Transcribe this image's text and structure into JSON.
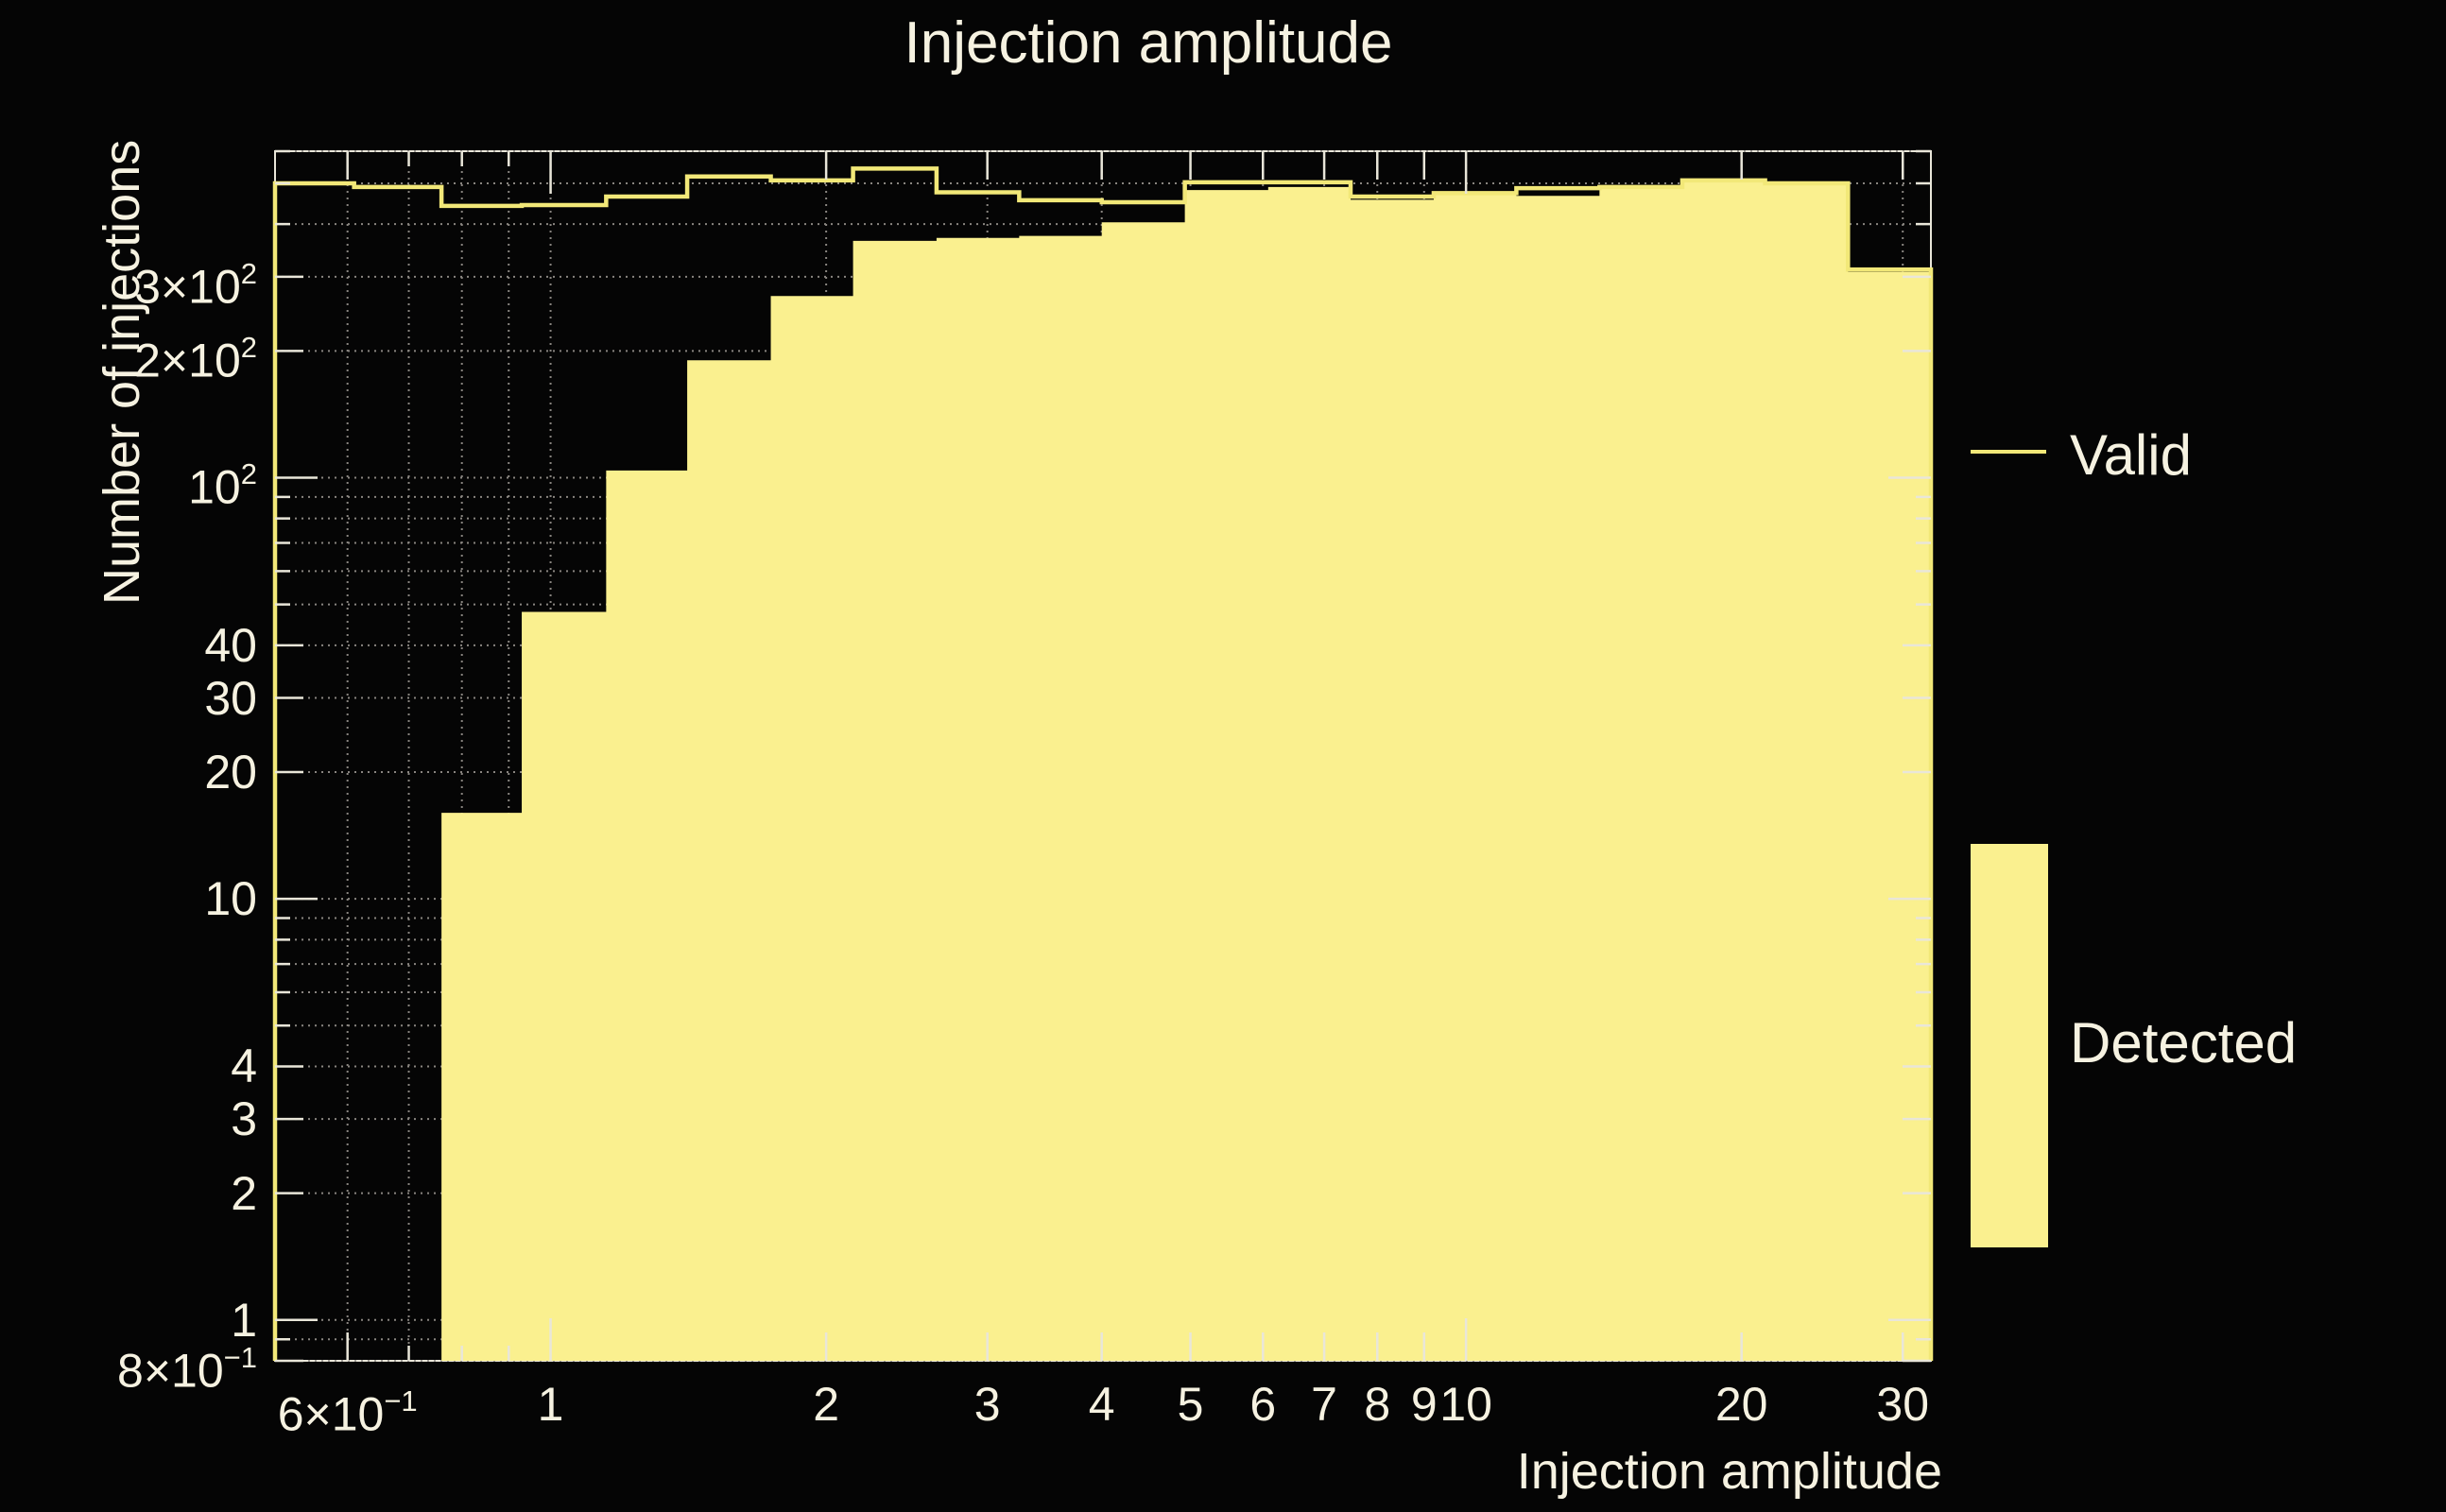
{
  "title": "Injection amplitude",
  "colors": {
    "background": "#050505",
    "detected_fill": "#FAF08F",
    "valid_line": "#F2E878",
    "text": "#F6F2E1",
    "frame": "#E9E6D9",
    "grid": "#98948E"
  },
  "legend": {
    "entries": [
      {
        "label": "Valid",
        "swatch": "line"
      },
      {
        "label": "Detected",
        "swatch": "filled-box"
      }
    ],
    "position": "right-outside"
  },
  "chart_data": {
    "type": "bar",
    "subtype": "step-histogram-log-log",
    "title": "Injection amplitude",
    "xlabel": "Injection amplitude",
    "ylabel": "Number of injections",
    "xscale": "log",
    "yscale": "log",
    "xlim": [
      0.5,
      32.2
    ],
    "ylim": [
      0.8,
      596
    ],
    "grid": "dotted",
    "bin_edges": [
      0.5,
      0.61,
      0.76,
      0.93,
      1.15,
      1.41,
      1.74,
      2.14,
      2.64,
      3.25,
      4.0,
      4.93,
      6.08,
      7.48,
      9.22,
      11.35,
      13.99,
      17.23,
      21.22,
      26.14,
      32.2
    ],
    "series": [
      {
        "name": "Valid",
        "style": "line",
        "values": [
          500,
          490,
          442,
          444,
          465,
          519,
          508,
          542,
          476,
          456,
          451,
          503,
          503,
          465,
          474,
          487,
          490,
          508,
          500,
          312
        ]
      },
      {
        "name": "Detected",
        "style": "fill",
        "values": [
          0,
          0,
          16,
          48,
          104,
          190,
          270,
          365,
          371,
          375,
          404,
          482,
          490,
          457,
          470,
          467,
          488,
          507,
          498,
          308
        ]
      }
    ],
    "x_ticks_labeled": [
      {
        "v": 0.6,
        "base": "6×10",
        "exp": "−1"
      },
      {
        "v": 1,
        "base": "1"
      },
      {
        "v": 2,
        "base": "2"
      },
      {
        "v": 3,
        "base": "3"
      },
      {
        "v": 4,
        "base": "4"
      },
      {
        "v": 5,
        "base": "5"
      },
      {
        "v": 6,
        "base": "6"
      },
      {
        "v": 7,
        "base": "7"
      },
      {
        "v": 8,
        "base": "8"
      },
      {
        "v": 9,
        "base": "9"
      },
      {
        "v": 10,
        "base": "10"
      },
      {
        "v": 20,
        "base": "20"
      },
      {
        "v": 30,
        "base": "30"
      }
    ],
    "x_ticks_minor": [
      0.7,
      0.8,
      0.9
    ],
    "y_ticks_labeled": [
      {
        "v": 0.8,
        "base": "8×10",
        "exp": "−1"
      },
      {
        "v": 1,
        "base": "1"
      },
      {
        "v": 2,
        "base": "2"
      },
      {
        "v": 3,
        "base": "3"
      },
      {
        "v": 4,
        "base": "4"
      },
      {
        "v": 10,
        "base": "10"
      },
      {
        "v": 20,
        "base": "20"
      },
      {
        "v": 30,
        "base": "30"
      },
      {
        "v": 40,
        "base": "40"
      },
      {
        "v": 100,
        "base": "10",
        "exp": "2"
      },
      {
        "v": 200,
        "base": "2×10",
        "exp": "2"
      },
      {
        "v": 300,
        "base": "3×10",
        "exp": "2"
      }
    ],
    "y_ticks_minor": [
      0.9,
      5,
      6,
      7,
      8,
      9,
      50,
      60,
      70,
      80,
      90,
      400,
      500,
      600
    ]
  }
}
